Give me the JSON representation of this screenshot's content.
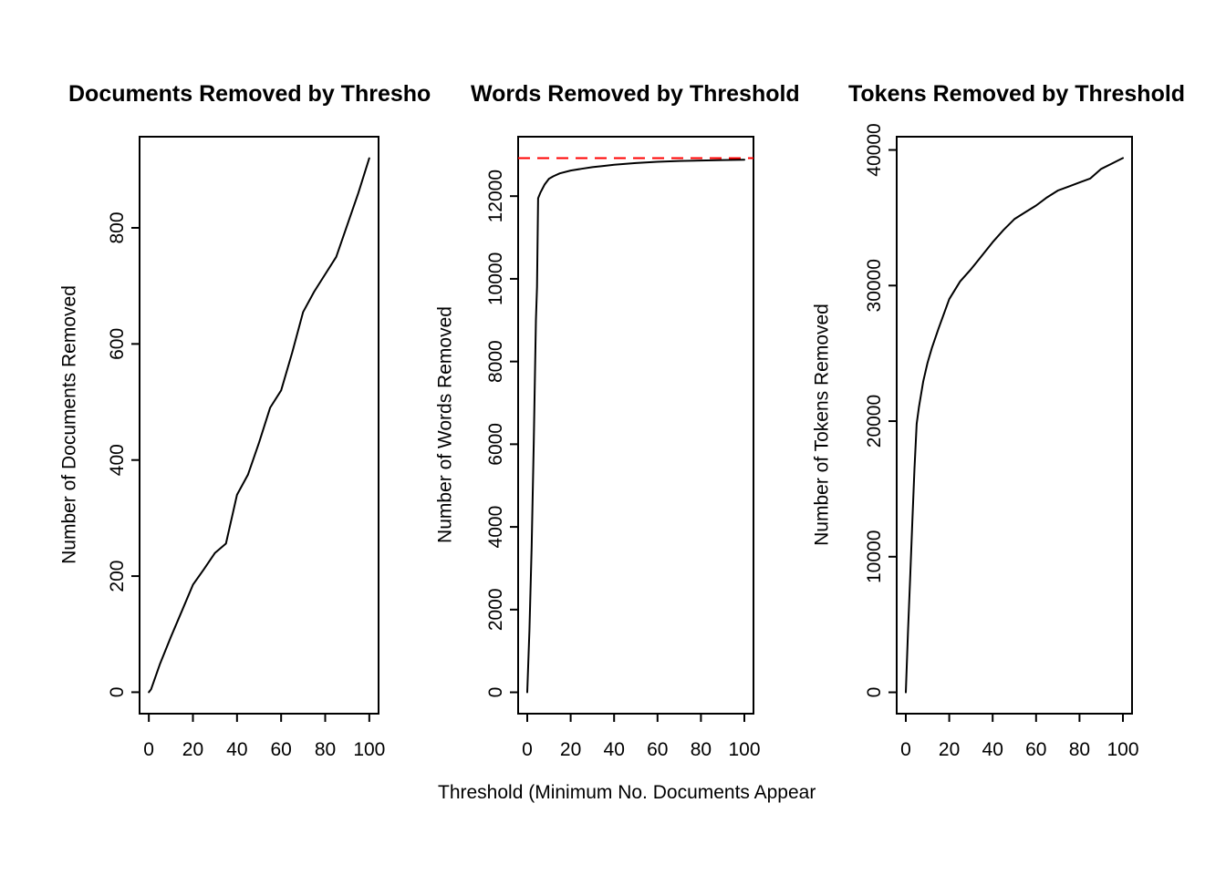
{
  "figure": {
    "background_color": "#ffffff",
    "axis_color": "#000000"
  },
  "chart_data": [
    {
      "type": "line",
      "title": "Documents Removed by Thresho",
      "xlabel": "",
      "ylabel": "Number of Documents Removed",
      "line_color": "#000000",
      "grid": false,
      "legend": "none",
      "xticks": [
        0,
        20,
        40,
        60,
        80,
        100
      ],
      "yticks": [
        0,
        200,
        400,
        600,
        800
      ],
      "xlim": [
        -4.2,
        104.2
      ],
      "ylim": [
        -37,
        957
      ],
      "x": [
        0,
        1,
        5,
        10,
        15,
        20,
        25,
        30,
        35,
        40,
        45,
        50,
        55,
        60,
        65,
        70,
        75,
        80,
        85,
        90,
        95,
        100
      ],
      "y": [
        0,
        5,
        48,
        95,
        140,
        185,
        212,
        240,
        256,
        340,
        375,
        430,
        490,
        520,
        585,
        655,
        690,
        720,
        750,
        805,
        860,
        920
      ]
    },
    {
      "type": "line",
      "title": "Words Removed by Threshold",
      "xlabel": "Threshold (Minimum No. Documents Appear",
      "ylabel": "Number of Words Removed",
      "line_color": "#000000",
      "grid": false,
      "legend": "none",
      "xticks": [
        0,
        20,
        40,
        60,
        80,
        100
      ],
      "yticks": [
        0,
        2000,
        4000,
        6000,
        8000,
        10000,
        12000
      ],
      "xlim": [
        -4.2,
        104.2
      ],
      "ylim": [
        -517,
        13437
      ],
      "x": [
        0,
        1,
        2,
        3,
        4,
        4.5,
        5,
        6,
        8,
        10,
        12,
        15,
        20,
        25,
        30,
        35,
        40,
        50,
        60,
        70,
        80,
        90,
        100
      ],
      "y": [
        0,
        1500,
        3500,
        6000,
        9000,
        9800,
        11950,
        12080,
        12280,
        12420,
        12480,
        12550,
        12620,
        12660,
        12700,
        12730,
        12760,
        12800,
        12830,
        12850,
        12862,
        12872,
        12880
      ],
      "ref_line": {
        "value": 12920,
        "color": "#ff0000",
        "style": "dashed"
      }
    },
    {
      "type": "line",
      "title": "Tokens Removed by Threshold",
      "xlabel": "",
      "ylabel": "Number of Tokens Removed",
      "line_color": "#000000",
      "grid": false,
      "legend": "none",
      "xticks": [
        0,
        20,
        40,
        60,
        80,
        100
      ],
      "yticks": [
        0,
        10000,
        20000,
        30000,
        40000
      ],
      "xlim": [
        -4.2,
        104.2
      ],
      "ylim": [
        -1576,
        40976
      ],
      "x": [
        0,
        1,
        2,
        3,
        4,
        5,
        6,
        8,
        10,
        12,
        15,
        20,
        25,
        30,
        32,
        35,
        40,
        45,
        50,
        55,
        60,
        65,
        70,
        75,
        80,
        85,
        90,
        95,
        100
      ],
      "y": [
        0,
        4500,
        8500,
        12500,
        16500,
        19800,
        21000,
        22900,
        24300,
        25400,
        26800,
        29000,
        30300,
        31200,
        31600,
        32200,
        33200,
        34100,
        34900,
        35400,
        35900,
        36500,
        37000,
        37300,
        37600,
        37900,
        38600,
        39000,
        39400
      ]
    }
  ]
}
